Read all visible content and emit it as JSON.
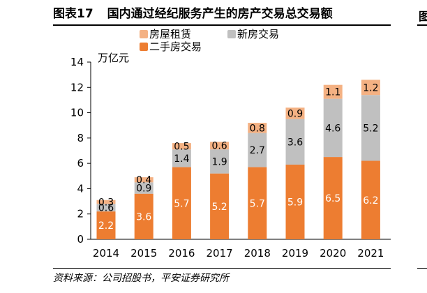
{
  "figure": {
    "number": "图表17",
    "title": "国内通过经纪服务产生的房产交易总交易额",
    "source": "资料来源：公司招股书，平安证券研究所"
  },
  "chart_data": {
    "type": "bar",
    "stacked": true,
    "unit": "万亿元",
    "categories": [
      "2014",
      "2015",
      "2016",
      "2017",
      "2018",
      "2019",
      "2020",
      "2021"
    ],
    "ylim": [
      0,
      14
    ],
    "yticks": [
      0,
      2,
      4,
      6,
      8,
      10,
      12,
      14
    ],
    "grid": false,
    "legend_position": "top",
    "series": [
      {
        "name": "二手房交易",
        "color": "#ED7D31",
        "values": [
          2.2,
          3.6,
          5.7,
          5.2,
          5.7,
          5.9,
          6.5,
          6.2
        ]
      },
      {
        "name": "新房交易",
        "color": "#C0C0C0",
        "values": [
          0.6,
          0.9,
          1.4,
          1.9,
          2.7,
          3.6,
          4.6,
          5.2
        ]
      },
      {
        "name": "房屋租赁",
        "color": "#F4B183",
        "values": [
          0.3,
          0.4,
          0.5,
          0.6,
          0.8,
          0.9,
          1.1,
          1.2
        ]
      }
    ]
  }
}
